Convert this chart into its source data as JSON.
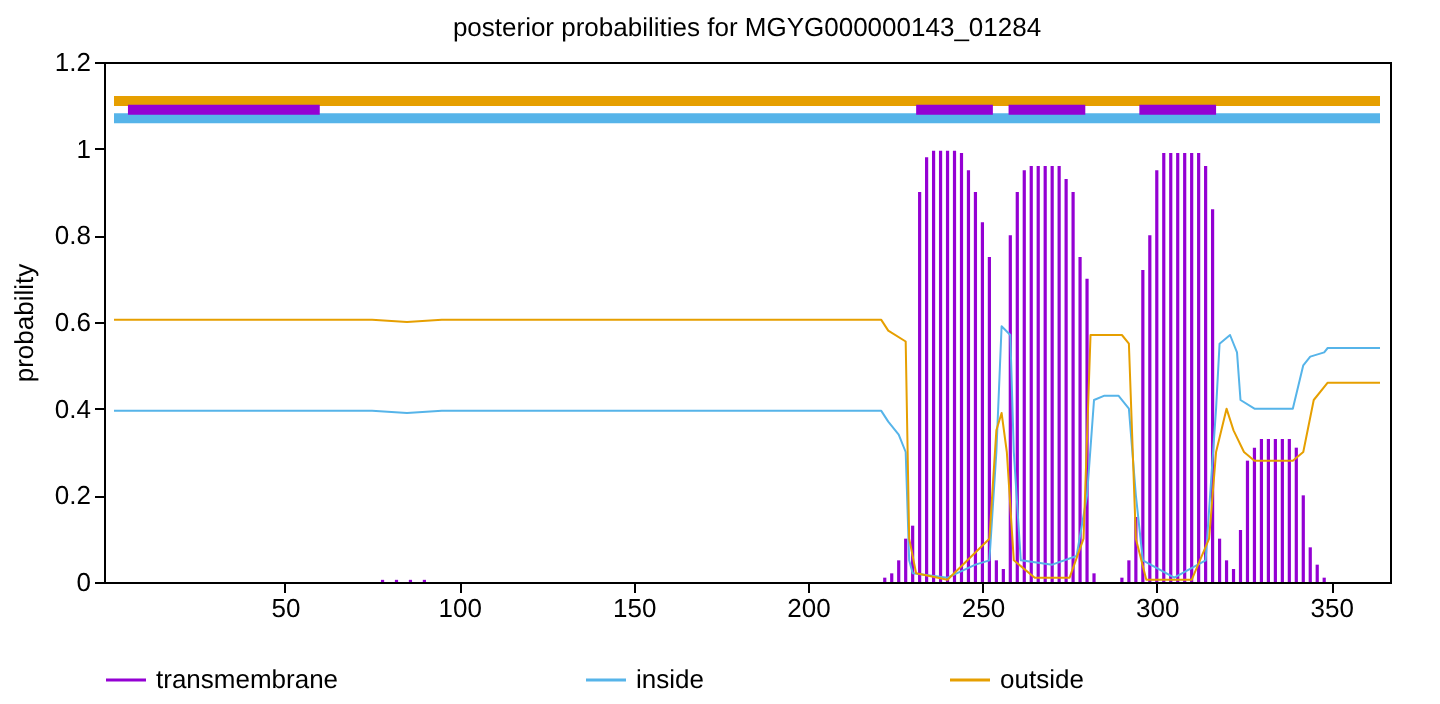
{
  "chart_data": {
    "type": "line",
    "title": "posterior probabilities for MGYG000000143_01284",
    "ylabel": "probability",
    "xlim": [
      1,
      364
    ],
    "xticks": [
      50,
      100,
      150,
      200,
      250,
      300,
      350
    ],
    "ylim": [
      0,
      1.2
    ],
    "yticks": [
      0,
      0.2,
      0.4,
      0.6,
      0.8,
      1,
      1.2
    ],
    "grid": false,
    "legend": "bottom",
    "series": [
      {
        "name": "transmembrane",
        "type": "bar",
        "color": "#9400d3",
        "x": [
          78,
          82,
          86,
          90,
          222,
          224,
          226,
          228,
          230,
          232,
          234,
          236,
          238,
          240,
          242,
          244,
          246,
          248,
          250,
          252,
          254,
          256,
          258,
          260,
          262,
          264,
          266,
          268,
          270,
          272,
          274,
          276,
          278,
          280,
          282,
          290,
          292,
          294,
          296,
          298,
          300,
          302,
          304,
          306,
          308,
          310,
          312,
          314,
          316,
          318,
          320,
          322,
          324,
          326,
          328,
          330,
          332,
          334,
          336,
          338,
          340,
          342,
          344,
          346,
          348
        ],
        "values": [
          0.005,
          0.005,
          0.005,
          0.005,
          0.01,
          0.02,
          0.05,
          0.1,
          0.13,
          0.9,
          0.98,
          0.995,
          0.995,
          0.995,
          0.995,
          0.99,
          0.95,
          0.9,
          0.83,
          0.75,
          0.05,
          0.03,
          0.8,
          0.9,
          0.95,
          0.96,
          0.96,
          0.96,
          0.96,
          0.96,
          0.93,
          0.9,
          0.75,
          0.7,
          0.02,
          0.01,
          0.05,
          0.15,
          0.72,
          0.8,
          0.95,
          0.99,
          0.99,
          0.99,
          0.99,
          0.99,
          0.99,
          0.96,
          0.86,
          0.1,
          0.05,
          0.03,
          0.12,
          0.28,
          0.31,
          0.33,
          0.33,
          0.33,
          0.33,
          0.33,
          0.31,
          0.2,
          0.08,
          0.04,
          0.01
        ]
      },
      {
        "name": "inside",
        "color": "#56b4e9",
        "x": [
          1,
          75,
          85,
          95,
          221,
          223,
          226,
          228,
          229,
          230,
          240,
          248,
          252,
          254,
          255.5,
          258,
          259,
          261,
          270,
          277,
          280,
          282,
          285,
          289,
          292,
          294,
          296,
          305,
          314,
          317,
          318,
          321,
          323,
          324,
          328,
          339,
          342,
          344,
          348,
          349,
          364
        ],
        "values": [
          0.395,
          0.395,
          0.39,
          0.395,
          0.395,
          0.37,
          0.34,
          0.3,
          0.05,
          0.02,
          0.01,
          0.04,
          0.05,
          0.3,
          0.59,
          0.57,
          0.3,
          0.05,
          0.04,
          0.06,
          0.2,
          0.42,
          0.43,
          0.43,
          0.4,
          0.2,
          0.05,
          0.01,
          0.05,
          0.4,
          0.55,
          0.57,
          0.53,
          0.42,
          0.4,
          0.4,
          0.5,
          0.52,
          0.53,
          0.54,
          0.54
        ]
      },
      {
        "name": "outside",
        "color": "#e69f00",
        "x": [
          1,
          75,
          85,
          95,
          221,
          223,
          228,
          229,
          231,
          240,
          252,
          254,
          255.5,
          257,
          259,
          265,
          275,
          279,
          281,
          285,
          290,
          292,
          294,
          297,
          310,
          315,
          317,
          320,
          322,
          325,
          328,
          331,
          339,
          342,
          345,
          349,
          364
        ],
        "values": [
          0.605,
          0.605,
          0.6,
          0.605,
          0.605,
          0.58,
          0.555,
          0.1,
          0.02,
          0.005,
          0.1,
          0.35,
          0.39,
          0.3,
          0.05,
          0.01,
          0.01,
          0.1,
          0.57,
          0.57,
          0.57,
          0.55,
          0.1,
          0.005,
          0.005,
          0.1,
          0.3,
          0.4,
          0.35,
          0.3,
          0.28,
          0.28,
          0.28,
          0.3,
          0.42,
          0.46,
          0.46
        ]
      },
      {
        "color": "#e69f00",
        "x": [
          1,
          364
        ],
        "values": [
          1.11,
          1.11
        ]
      },
      {
        "color": "#56b4e9",
        "x": [
          1,
          364
        ],
        "values": [
          1.07,
          1.07
        ]
      },
      {
        "color": "#9400d3",
        "x": [
          5,
          60
        ],
        "values": [
          1.09,
          1.09
        ]
      },
      {
        "color": "#9400d3",
        "x": [
          231,
          253
        ],
        "values": [
          1.09,
          1.09
        ]
      },
      {
        "color": "#9400d3",
        "x": [
          257.5,
          279.5
        ],
        "values": [
          1.09,
          1.09
        ]
      },
      {
        "color": "#9400d3",
        "x": [
          295,
          317
        ],
        "values": [
          1.09,
          1.09
        ]
      }
    ]
  }
}
